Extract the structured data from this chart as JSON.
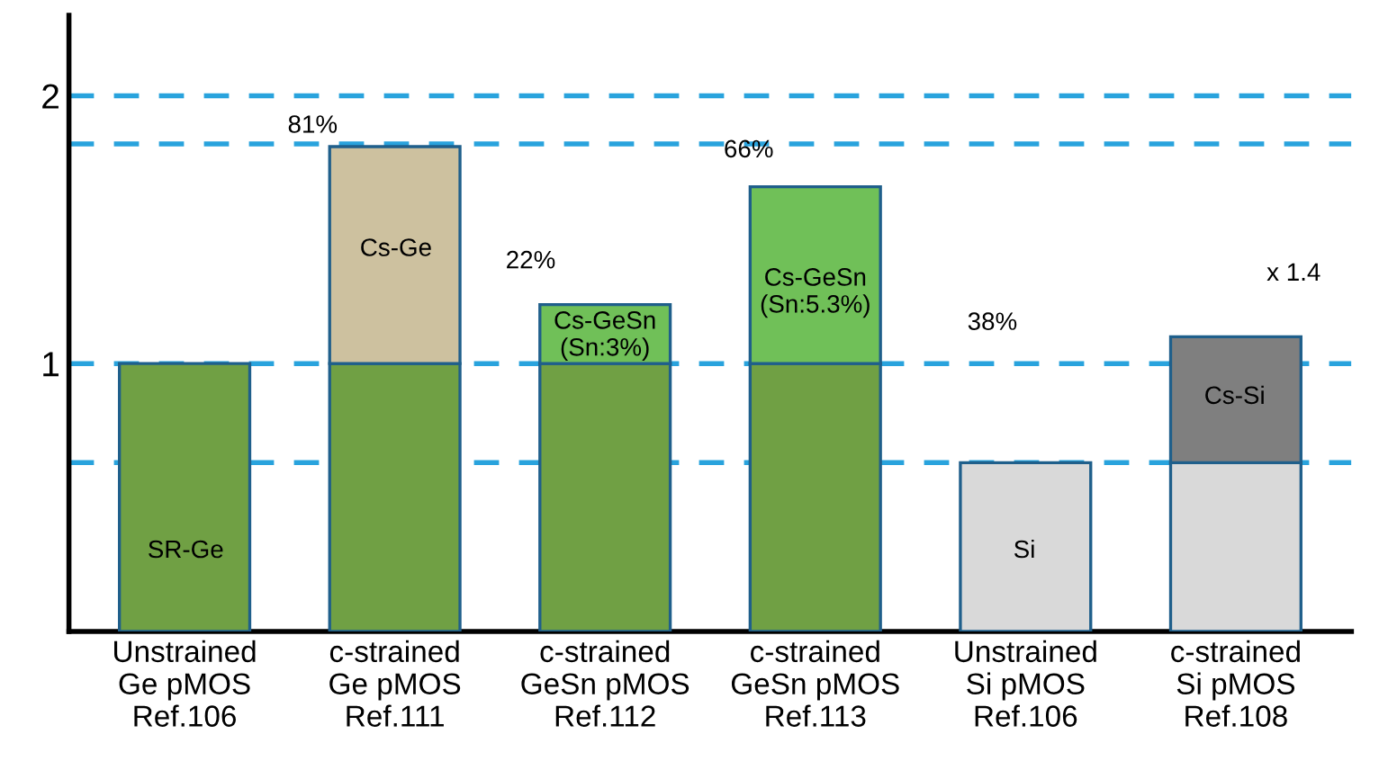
{
  "chart_data": {
    "type": "bar",
    "stacked": true,
    "categories": [
      "Unstrained\nGe pMOS\nRef.106",
      "c-strained\nGe pMOS\nRef.111",
      "c-strained\nGeSn pMOS\nRef.112",
      "c-strained\nGeSn pMOS\nRef.113",
      "Unstrained\nSi pMOS\nRef.106",
      "c-strained\nSi pMOS\nRef.108"
    ],
    "series": [
      {
        "colors": [
          "#70a044",
          "#70a044",
          "#70a044",
          "#70a044",
          "#d9d9d9",
          "#d9d9d9"
        ],
        "values": [
          1,
          1,
          1,
          1,
          0.63,
          0.63
        ]
      },
      {
        "colors": [
          "#70a044",
          "#cdc19f",
          "#70c058",
          "#70c058",
          "#d9d9d9",
          "#7f7f7f"
        ],
        "values": [
          null,
          0.81,
          0.22,
          0.66,
          null,
          0.47
        ]
      }
    ],
    "ylim": [
      0,
      2.3
    ],
    "yticks": [
      1,
      2
    ],
    "grid": false,
    "ref_lines": [
      {
        "axis": "y",
        "value": 2,
        "color": "#29a3dd",
        "line_style": "dashed"
      },
      {
        "axis": "y",
        "value": 1.82,
        "color": "#29a3dd",
        "line_style": "dashed"
      },
      {
        "axis": "y",
        "value": 1,
        "color": "#29a3dd",
        "line_style": "dashed"
      },
      {
        "axis": "y",
        "value": 0.63,
        "color": "#29a3dd",
        "line_style": "dashed"
      }
    ],
    "annotations": [
      "SR-Ge",
      "Cs-Ge",
      "Cs-GeSn\n(Sn:3%)",
      "Cs-GeSn\n(Sn:5.3%)",
      "Si",
      "Cs-Si",
      "81%",
      "22%",
      "66%",
      "38%",
      "x 1.4"
    ]
  }
}
